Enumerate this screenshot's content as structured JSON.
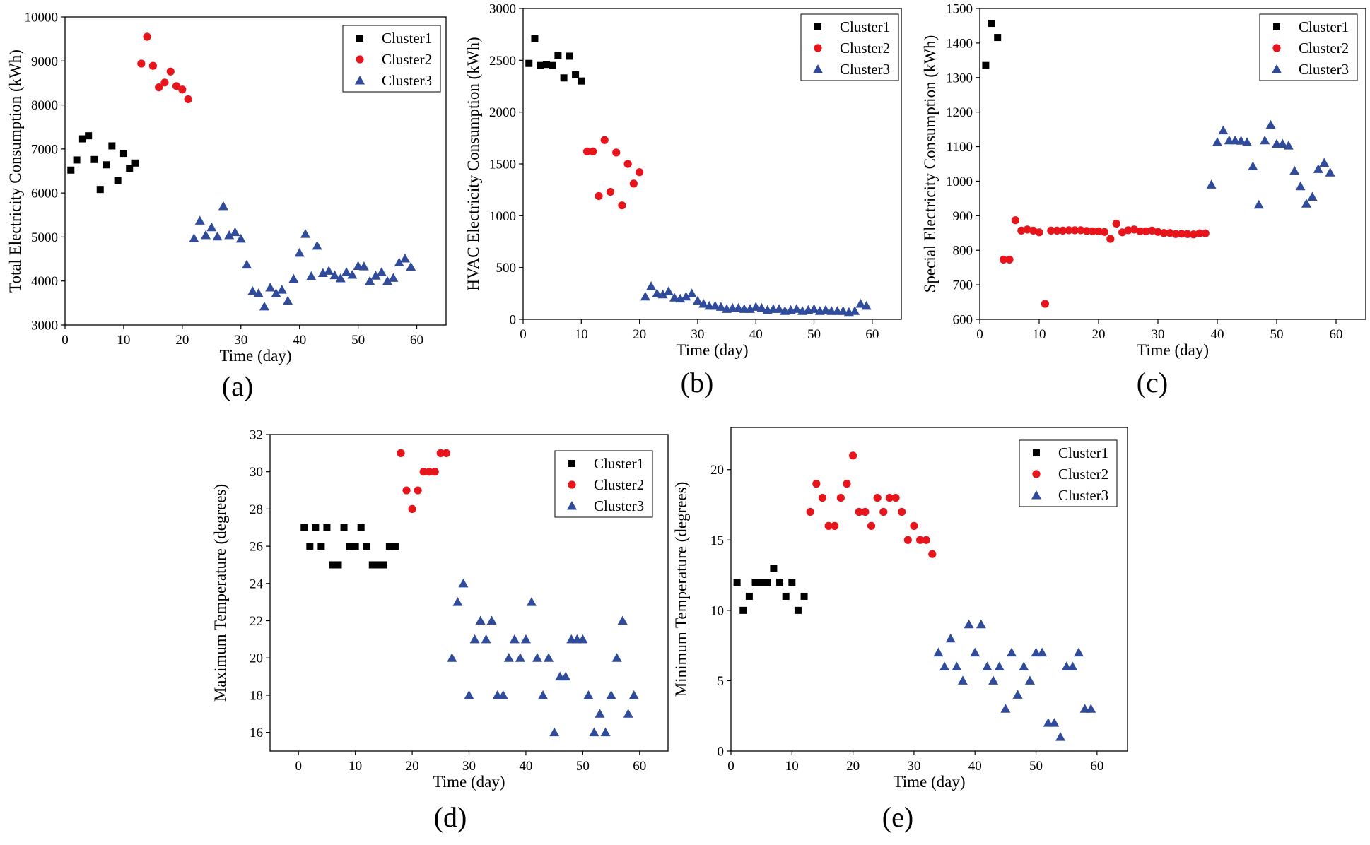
{
  "colors": {
    "Cluster1": "#000000",
    "Cluster2": "#e8141c",
    "Cluster3": "#2f4b9a"
  },
  "chart_data": [
    {
      "type": "scatter",
      "panel_label": "(a)",
      "xlabel": "Time (day)",
      "ylabel": "Total Electricity Consumption (kWh)",
      "xlim": [
        0,
        65
      ],
      "ylim": [
        3000,
        10000
      ],
      "xticks": [
        0,
        10,
        20,
        30,
        40,
        50,
        60
      ],
      "yticks": [
        3000,
        4000,
        5000,
        6000,
        7000,
        8000,
        9000,
        10000
      ],
      "legend_position": "top-right",
      "series": [
        {
          "name": "Cluster1",
          "marker": "square",
          "x": [
            1,
            2,
            3,
            4,
            5,
            6,
            7,
            8,
            9,
            10,
            11,
            12
          ],
          "y": [
            6520,
            6750,
            7230,
            7300,
            6760,
            6080,
            6640,
            7070,
            6280,
            6900,
            6560,
            6680
          ]
        },
        {
          "name": "Cluster2",
          "marker": "circle",
          "x": [
            13,
            14,
            15,
            16,
            17,
            18,
            19,
            20,
            21
          ],
          "y": [
            8940,
            9550,
            8890,
            8400,
            8510,
            8760,
            8430,
            8350,
            8130
          ]
        },
        {
          "name": "Cluster3",
          "marker": "triangle",
          "x": [
            22,
            23,
            24,
            25,
            26,
            27,
            28,
            29,
            30,
            31,
            32,
            33,
            34,
            35,
            36,
            37,
            38,
            39,
            40,
            41,
            42,
            43,
            44,
            45,
            46,
            47,
            48,
            49,
            50,
            51,
            52,
            53,
            54,
            55,
            56,
            57,
            58,
            59
          ],
          "y": [
            4970,
            5370,
            5040,
            5220,
            5010,
            5700,
            5040,
            5110,
            4960,
            4370,
            3770,
            3720,
            3420,
            3850,
            3720,
            3800,
            3550,
            4050,
            4640,
            5070,
            4110,
            4800,
            4180,
            4230,
            4130,
            4060,
            4200,
            4140,
            4340,
            4330,
            4000,
            4120,
            4200,
            4000,
            4070,
            4420,
            4510,
            4320
          ]
        }
      ]
    },
    {
      "type": "scatter",
      "panel_label": "(b)",
      "xlabel": "Time (day)",
      "ylabel": "HVAC Electricity Consumption (kWh)",
      "xlim": [
        0,
        65
      ],
      "ylim": [
        0,
        3000
      ],
      "xticks": [
        0,
        10,
        20,
        30,
        40,
        50,
        60
      ],
      "yticks": [
        0,
        500,
        1000,
        1500,
        2000,
        2500,
        3000
      ],
      "legend_position": "top-right",
      "series": [
        {
          "name": "Cluster1",
          "marker": "square",
          "x": [
            1,
            2,
            3,
            4,
            5,
            6,
            7,
            8,
            9,
            10
          ],
          "y": [
            2470,
            2710,
            2450,
            2460,
            2450,
            2550,
            2330,
            2540,
            2360,
            2300
          ]
        },
        {
          "name": "Cluster2",
          "marker": "circle",
          "x": [
            11,
            12,
            13,
            14,
            15,
            16,
            17,
            18,
            19,
            20
          ],
          "y": [
            1620,
            1620,
            1190,
            1730,
            1230,
            1610,
            1100,
            1500,
            1310,
            1420
          ]
        },
        {
          "name": "Cluster3",
          "marker": "triangle",
          "x": [
            21,
            22,
            23,
            24,
            25,
            26,
            27,
            28,
            29,
            30,
            31,
            32,
            33,
            34,
            35,
            36,
            37,
            38,
            39,
            40,
            41,
            42,
            43,
            44,
            45,
            46,
            47,
            48,
            49,
            50,
            51,
            52,
            53,
            54,
            55,
            56,
            57,
            58,
            59
          ],
          "y": [
            220,
            320,
            250,
            240,
            270,
            210,
            200,
            220,
            250,
            180,
            150,
            130,
            130,
            120,
            100,
            110,
            110,
            100,
            100,
            120,
            110,
            90,
            100,
            100,
            80,
            90,
            100,
            80,
            90,
            100,
            80,
            90,
            80,
            80,
            80,
            70,
            80,
            150,
            130
          ]
        }
      ]
    },
    {
      "type": "scatter",
      "panel_label": "(c)",
      "xlabel": "Time (day)",
      "ylabel": "Special Electricity Consumption (kWh)",
      "xlim": [
        0,
        65
      ],
      "ylim": [
        600,
        1500
      ],
      "xticks": [
        0,
        10,
        20,
        30,
        40,
        50,
        60
      ],
      "yticks": [
        600,
        700,
        800,
        900,
        1000,
        1100,
        1200,
        1300,
        1400,
        1500
      ],
      "legend_position": "top-right",
      "series": [
        {
          "name": "Cluster1",
          "marker": "square",
          "x": [
            1,
            2,
            3
          ],
          "y": [
            1335,
            1457,
            1416
          ]
        },
        {
          "name": "Cluster2",
          "marker": "circle",
          "x": [
            4,
            5,
            6,
            7,
            8,
            9,
            10,
            11,
            12,
            13,
            14,
            15,
            16,
            17,
            18,
            19,
            20,
            21,
            22,
            23,
            24,
            25,
            26,
            27,
            28,
            29,
            30,
            31,
            32,
            33,
            34,
            35,
            36,
            37,
            38
          ],
          "y": [
            773,
            773,
            887,
            857,
            860,
            857,
            852,
            645,
            857,
            857,
            857,
            858,
            858,
            858,
            856,
            855,
            855,
            853,
            833,
            877,
            852,
            858,
            860,
            855,
            855,
            857,
            853,
            850,
            850,
            847,
            848,
            847,
            846,
            849,
            849
          ]
        },
        {
          "name": "Cluster3",
          "marker": "triangle",
          "x": [
            39,
            40,
            41,
            42,
            43,
            44,
            45,
            46,
            47,
            48,
            49,
            50,
            51,
            52,
            53,
            54,
            55,
            56,
            57,
            58,
            59
          ],
          "y": [
            990,
            1113,
            1147,
            1118,
            1118,
            1117,
            1113,
            1043,
            932,
            1118,
            1163,
            1108,
            1108,
            1103,
            1030,
            985,
            935,
            955,
            1035,
            1053,
            1025
          ]
        }
      ]
    },
    {
      "type": "scatter",
      "panel_label": "(d)",
      "xlabel": "Time (day)",
      "ylabel": "Maximum Temperature (degrees)",
      "xlim": [
        -5,
        65
      ],
      "ylim": [
        15,
        32
      ],
      "xticks": [
        0,
        10,
        20,
        30,
        40,
        50,
        60
      ],
      "yticks": [
        16,
        18,
        20,
        22,
        24,
        26,
        28,
        30,
        32
      ],
      "legend_position": "top-right",
      "series": [
        {
          "name": "Cluster1",
          "marker": "square",
          "x": [
            1,
            2,
            3,
            4,
            5,
            6,
            7,
            8,
            9,
            10,
            11,
            12,
            13,
            14,
            15,
            16,
            17
          ],
          "y": [
            27,
            26,
            27,
            26,
            27,
            25,
            25,
            27,
            26,
            26,
            27,
            26,
            25,
            25,
            25,
            26,
            26
          ]
        },
        {
          "name": "Cluster2",
          "marker": "circle",
          "x": [
            18,
            19,
            20,
            21,
            22,
            23,
            24,
            25,
            26
          ],
          "y": [
            31,
            29,
            28,
            29,
            30,
            30,
            30,
            31,
            31
          ]
        },
        {
          "name": "Cluster3",
          "marker": "triangle",
          "x": [
            27,
            28,
            29,
            30,
            31,
            32,
            33,
            34,
            35,
            36,
            37,
            38,
            39,
            40,
            41,
            42,
            43,
            44,
            45,
            46,
            47,
            48,
            49,
            50,
            51,
            52,
            53,
            54,
            55,
            56,
            57,
            58,
            59
          ],
          "y": [
            20,
            23,
            24,
            18,
            21,
            22,
            21,
            22,
            18,
            18,
            20,
            21,
            20,
            21,
            23,
            20,
            18,
            20,
            16,
            19,
            19,
            21,
            21,
            21,
            18,
            16,
            17,
            16,
            18,
            20,
            22,
            17,
            18
          ]
        }
      ]
    },
    {
      "type": "scatter",
      "panel_label": "(e)",
      "xlabel": "Time (day)",
      "ylabel": "Minimum Temperature (degrees)",
      "xlim": [
        0,
        65
      ],
      "ylim": [
        0,
        23
      ],
      "xticks": [
        0,
        10,
        20,
        30,
        40,
        50,
        60
      ],
      "yticks": [
        0,
        5,
        10,
        15,
        20
      ],
      "legend_position": "top-right",
      "series": [
        {
          "name": "Cluster1",
          "marker": "square",
          "x": [
            1,
            2,
            3,
            4,
            5,
            6,
            7,
            8,
            9,
            10,
            11,
            12
          ],
          "y": [
            12,
            10,
            11,
            12,
            12,
            12,
            13,
            12,
            11,
            12,
            10,
            11
          ]
        },
        {
          "name": "Cluster2",
          "marker": "circle",
          "x": [
            13,
            14,
            15,
            16,
            17,
            18,
            19,
            20,
            21,
            22,
            23,
            24,
            25,
            26,
            27,
            28,
            29,
            30,
            31,
            32,
            33
          ],
          "y": [
            17,
            19,
            18,
            16,
            16,
            18,
            19,
            21,
            17,
            17,
            16,
            18,
            17,
            18,
            18,
            17,
            15,
            16,
            15,
            15,
            14
          ]
        },
        {
          "name": "Cluster3",
          "marker": "triangle",
          "x": [
            34,
            35,
            36,
            37,
            38,
            39,
            40,
            41,
            42,
            43,
            44,
            45,
            46,
            47,
            48,
            49,
            50,
            51,
            52,
            53,
            54,
            55,
            56,
            57,
            58,
            59
          ],
          "y": [
            7,
            6,
            8,
            6,
            5,
            9,
            7,
            9,
            6,
            5,
            6,
            3,
            7,
            4,
            6,
            5,
            7,
            7,
            2,
            2,
            1,
            6,
            6,
            7,
            3,
            3
          ]
        }
      ]
    }
  ]
}
